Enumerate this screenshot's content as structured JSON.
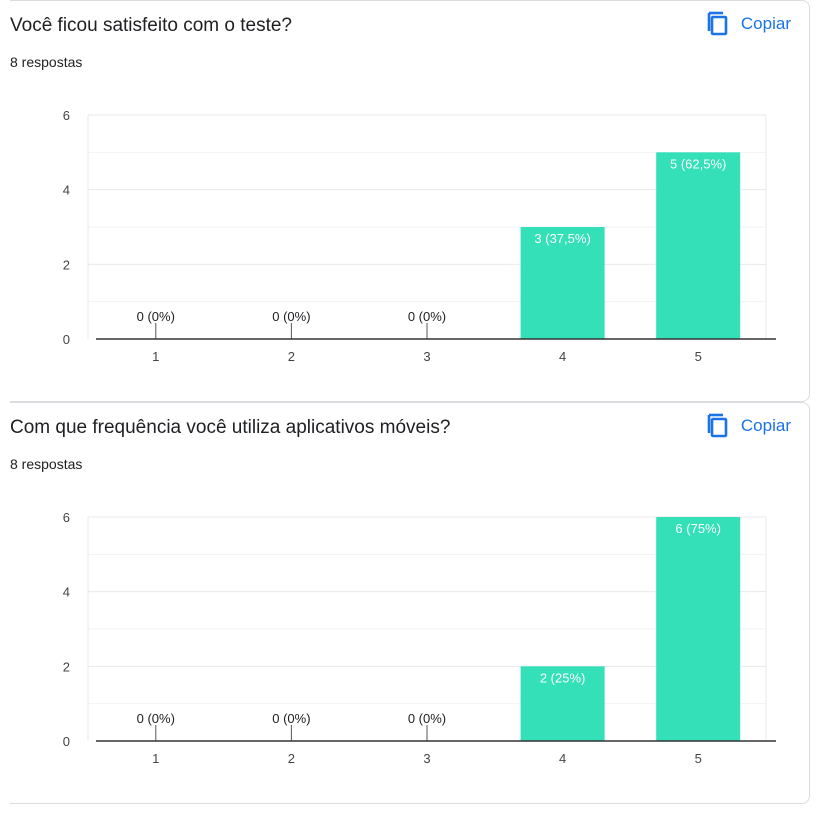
{
  "cards": [
    {
      "title": "Você ficou satisfeito com o teste?",
      "responses": "8 respostas",
      "copy_label": "Copiar",
      "copy_icon": "copy-icon"
    },
    {
      "title": "Com que frequência você utiliza aplicativos móveis?",
      "responses": "8 respostas",
      "copy_label": "Copiar",
      "copy_icon": "copy-icon"
    }
  ],
  "colors": {
    "bar": "#33e0b8",
    "accent": "#1a73e8",
    "grid": "#e8eaed",
    "axis": "#333333"
  },
  "chart_data": [
    {
      "type": "bar",
      "categories": [
        "1",
        "2",
        "3",
        "4",
        "5"
      ],
      "values": [
        0,
        0,
        0,
        3,
        5
      ],
      "data_labels": [
        "0 (0%)",
        "0 (0%)",
        "0 (0%)",
        "3 (37,5%)",
        "5 (62,5%)"
      ],
      "y_ticks": [
        0,
        2,
        4,
        6
      ],
      "ylim": [
        0,
        6
      ],
      "grid": true
    },
    {
      "type": "bar",
      "categories": [
        "1",
        "2",
        "3",
        "4",
        "5"
      ],
      "values": [
        0,
        0,
        0,
        2,
        6
      ],
      "data_labels": [
        "0 (0%)",
        "0 (0%)",
        "0 (0%)",
        "2 (25%)",
        "6 (75%)"
      ],
      "y_ticks": [
        0,
        2,
        4,
        6
      ],
      "ylim": [
        0,
        6
      ],
      "grid": true
    }
  ]
}
